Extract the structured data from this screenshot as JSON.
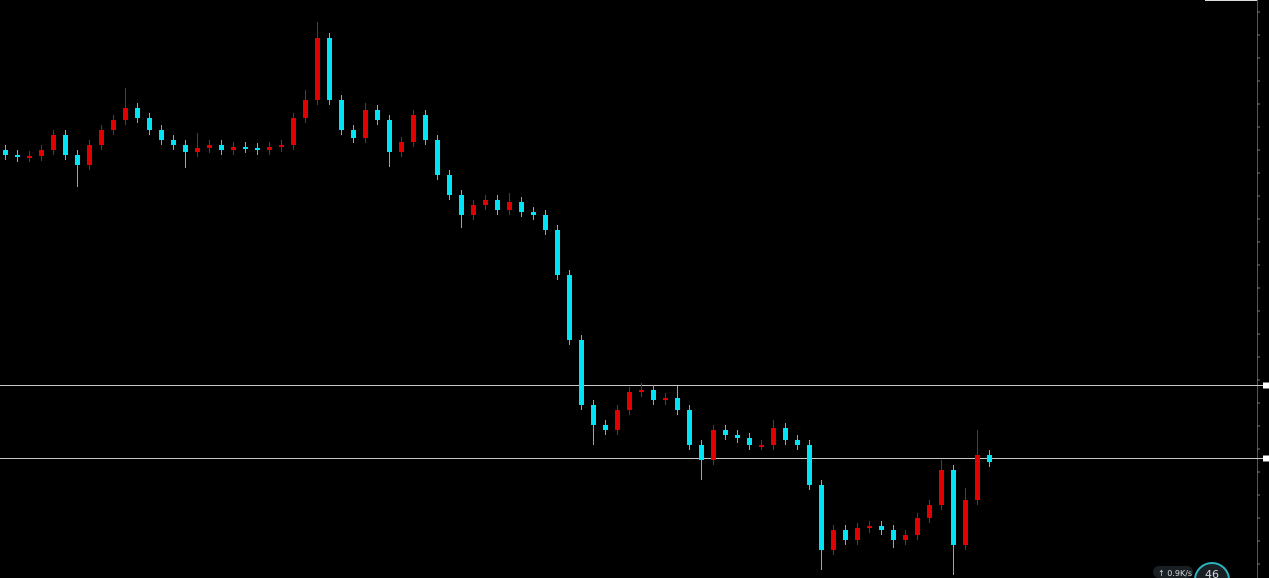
{
  "chart_data": {
    "type": "candlestick",
    "ylim": [
      0,
      578
    ],
    "up_color": "#e00000",
    "down_color": "#00e5f5",
    "level_color": "#c8c8c8",
    "levels": [
      193,
      120
    ],
    "categories": [
      null,
      null,
      null,
      null,
      null,
      null,
      null,
      null,
      null,
      null,
      null,
      null,
      null,
      null,
      null,
      null,
      null,
      null,
      null,
      null,
      null,
      null,
      null,
      null,
      null,
      null,
      null,
      null,
      null,
      null,
      null,
      null,
      null,
      null,
      null,
      null,
      null,
      null,
      null,
      null,
      null,
      null,
      null,
      null,
      null,
      null,
      null,
      null,
      null,
      null,
      null,
      null,
      null,
      null,
      null,
      null,
      null,
      null,
      null,
      null,
      null,
      null,
      null,
      null,
      null,
      null,
      null,
      null,
      null,
      null,
      null,
      null,
      null,
      null,
      null,
      null,
      null,
      null,
      null,
      null,
      null,
      null,
      null
    ],
    "open": [
      428,
      423,
      421,
      422,
      428,
      443,
      423,
      413,
      433,
      448,
      458,
      470,
      460,
      448,
      438,
      433,
      426,
      430,
      433,
      428,
      431,
      430,
      428,
      431,
      433,
      460,
      478,
      540,
      478,
      448,
      440,
      468,
      458,
      426,
      436,
      463,
      438,
      403,
      383,
      363,
      373,
      378,
      368,
      376,
      366,
      363,
      348,
      303,
      238,
      173,
      153,
      148,
      168,
      186,
      188,
      178,
      180,
      168,
      133,
      118,
      148,
      143,
      140,
      133,
      133,
      150,
      138,
      133,
      93,
      28,
      48,
      38,
      50,
      52,
      48,
      38,
      43,
      60,
      73,
      108,
      33,
      78,
      123
    ],
    "high": [
      433,
      428,
      427,
      433,
      448,
      448,
      428,
      438,
      453,
      463,
      490,
      475,
      465,
      453,
      443,
      438,
      445,
      438,
      438,
      436,
      436,
      435,
      436,
      438,
      465,
      488,
      556,
      545,
      483,
      453,
      475,
      473,
      463,
      441,
      468,
      468,
      443,
      408,
      388,
      378,
      383,
      383,
      385,
      381,
      371,
      368,
      353,
      308,
      243,
      178,
      158,
      173,
      191,
      195,
      193,
      185,
      192,
      173,
      138,
      153,
      153,
      148,
      145,
      138,
      158,
      155,
      143,
      138,
      98,
      53,
      53,
      55,
      57,
      57,
      53,
      48,
      65,
      78,
      118,
      113,
      90,
      148,
      128
    ],
    "low": [
      418,
      416,
      416,
      417,
      423,
      418,
      391,
      408,
      428,
      443,
      453,
      455,
      443,
      433,
      428,
      410,
      421,
      425,
      423,
      423,
      425,
      423,
      423,
      426,
      428,
      455,
      473,
      473,
      443,
      435,
      435,
      453,
      411,
      421,
      431,
      433,
      398,
      378,
      350,
      358,
      368,
      363,
      363,
      361,
      358,
      343,
      298,
      233,
      168,
      133,
      143,
      143,
      163,
      181,
      173,
      173,
      163,
      128,
      98,
      113,
      138,
      135,
      128,
      128,
      128,
      133,
      128,
      88,
      8,
      23,
      33,
      33,
      45,
      43,
      30,
      33,
      38,
      55,
      68,
      3,
      28,
      73,
      111
    ],
    "close": [
      423,
      421,
      422,
      428,
      443,
      423,
      413,
      433,
      448,
      458,
      470,
      460,
      448,
      438,
      433,
      426,
      430,
      433,
      428,
      431,
      430,
      428,
      431,
      433,
      460,
      478,
      540,
      478,
      448,
      440,
      468,
      458,
      426,
      436,
      463,
      438,
      403,
      383,
      363,
      373,
      378,
      368,
      376,
      366,
      363,
      348,
      303,
      238,
      173,
      153,
      148,
      168,
      186,
      188,
      178,
      180,
      168,
      133,
      118,
      148,
      143,
      140,
      133,
      133,
      150,
      138,
      133,
      93,
      28,
      48,
      38,
      50,
      52,
      48,
      38,
      43,
      60,
      73,
      108,
      33,
      78,
      123,
      116
    ]
  },
  "overlay": {
    "speed": "↑ 0.9K/s",
    "badge": "46"
  }
}
